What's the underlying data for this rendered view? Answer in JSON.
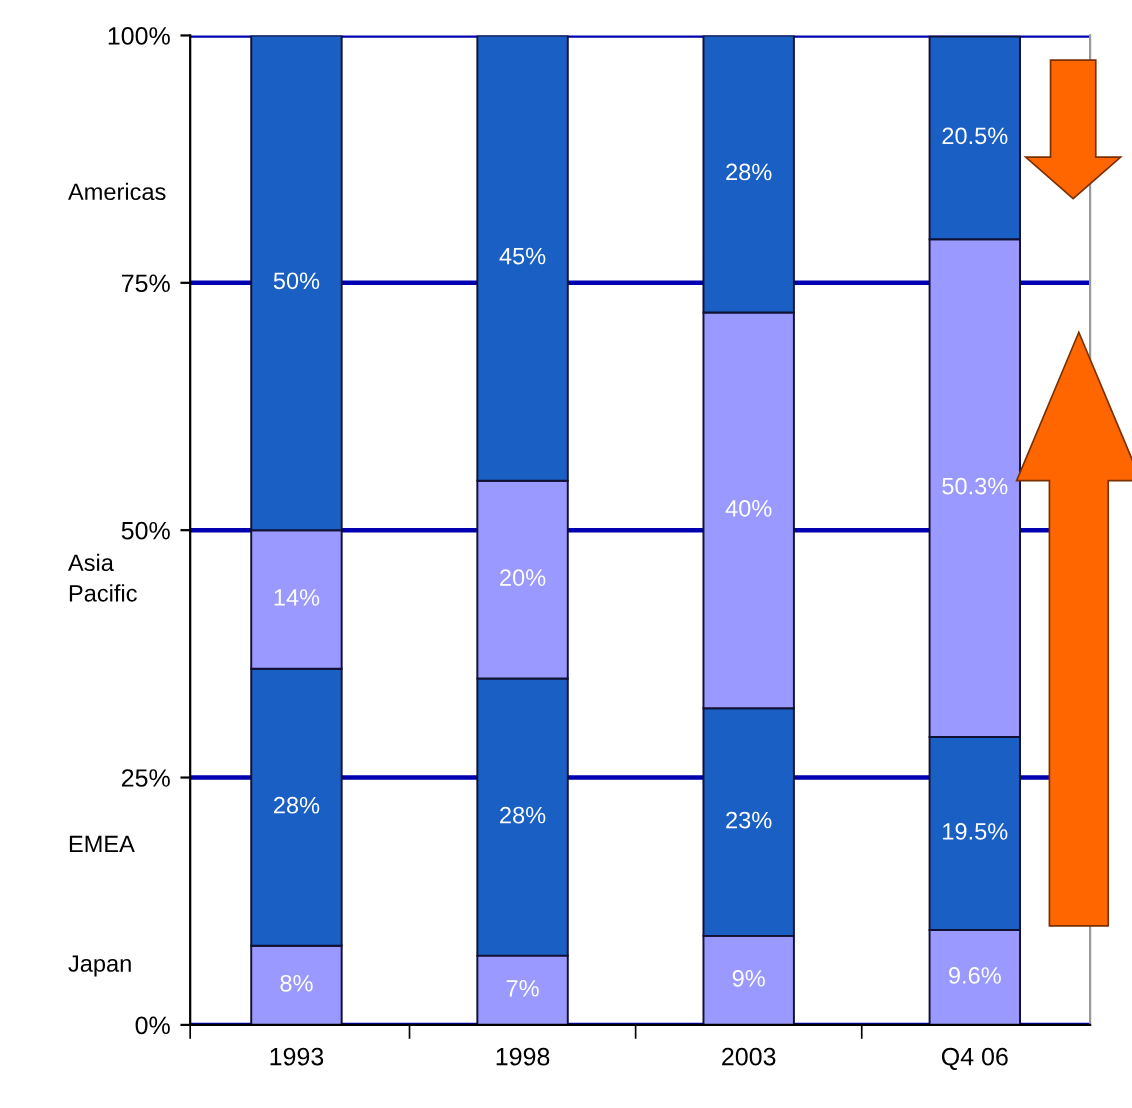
{
  "chart_data": {
    "type": "bar",
    "stacked": true,
    "categories": [
      "1993",
      "1998",
      "2003",
      "Q4 06"
    ],
    "series": [
      {
        "color": "#9999ff",
        "values": [
          8,
          7,
          9,
          9.6
        ],
        "value_labels": [
          "8%",
          "7%",
          "9%",
          "9.6%"
        ]
      },
      {
        "color": "#1a5fc4",
        "values": [
          28,
          28,
          23,
          19.5
        ],
        "value_labels": [
          "28%",
          "28%",
          "23%",
          "19.5%"
        ]
      },
      {
        "color": "#9999ff",
        "values": [
          14,
          20,
          40,
          50.3
        ],
        "value_labels": [
          "14%",
          "20%",
          "40%",
          "50.3%"
        ]
      },
      {
        "color": "#1a5fc4",
        "values": [
          50,
          45,
          28,
          20.5
        ],
        "value_labels": [
          "50%",
          "45%",
          "28%",
          "20.5%"
        ]
      }
    ],
    "ylim": [
      0,
      100
    ],
    "yticks": [
      {
        "value": 0,
        "label": "0%"
      },
      {
        "value": 25,
        "label": "25%"
      },
      {
        "value": 50,
        "label": "50%"
      },
      {
        "value": 75,
        "label": "75%"
      },
      {
        "value": 100,
        "label": "100%"
      }
    ],
    "annotations": [
      "Japan",
      "EMEA",
      "Asia\nPacific",
      "Americas"
    ],
    "grid": "y",
    "legend": false
  }
}
